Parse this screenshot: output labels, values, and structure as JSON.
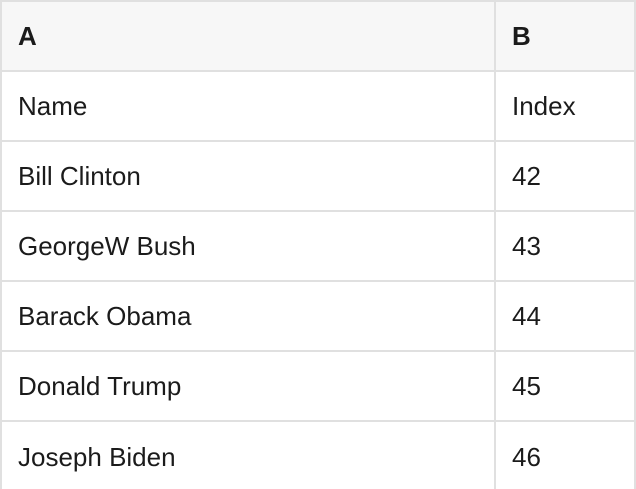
{
  "table": {
    "columns": [
      {
        "label": "A"
      },
      {
        "label": "B"
      }
    ],
    "rows": [
      [
        "Name",
        "Index"
      ],
      [
        "Bill Clinton",
        "42"
      ],
      [
        "GeorgeW Bush",
        "43"
      ],
      [
        "Barack Obama",
        "44"
      ],
      [
        "Donald Trump",
        "45"
      ],
      [
        "Joseph Biden",
        "46"
      ]
    ]
  },
  "colors": {
    "header_bg": "#f7f7f7",
    "row_bg": "#ffffff",
    "border": "#e0e0e0",
    "text": "#1b1b1b"
  }
}
